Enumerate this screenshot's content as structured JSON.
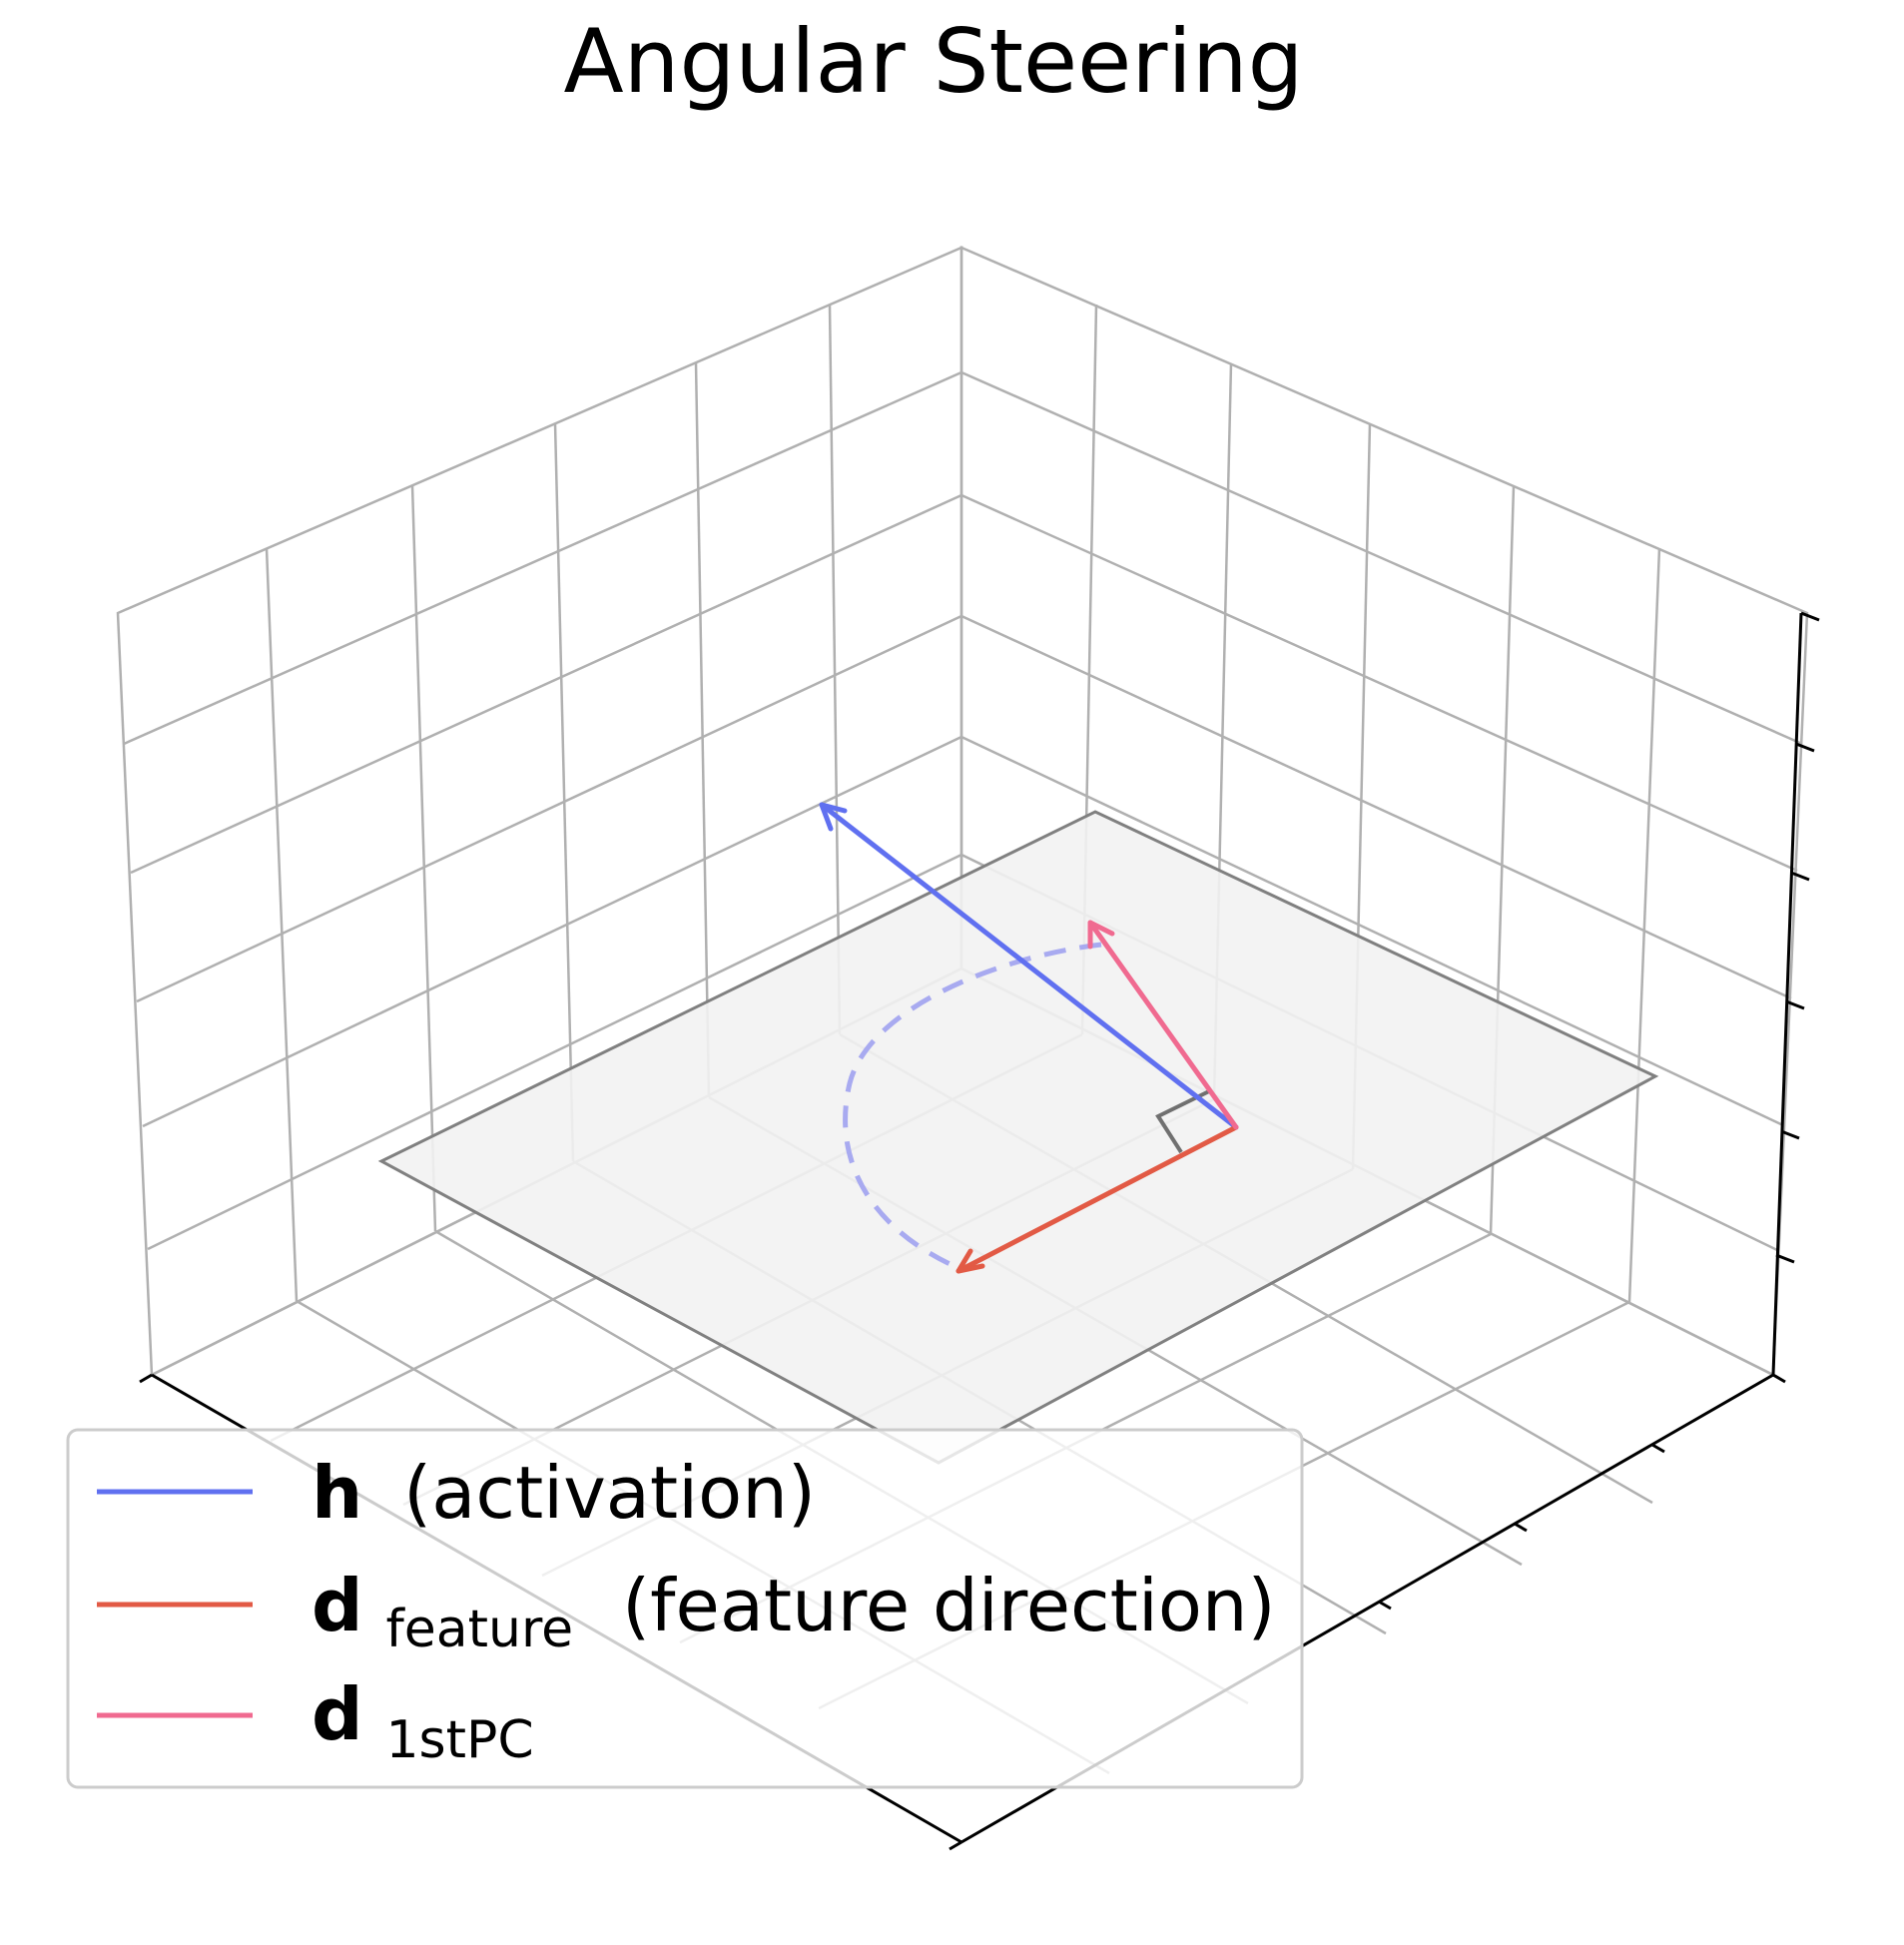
{
  "title": "Angular Steering",
  "legend": [
    {
      "symbol": "h",
      "subscript": "",
      "label": "(activation)",
      "color": "#6070f0"
    },
    {
      "symbol": "d",
      "subscript": "feature",
      "label": "(feature direction)",
      "color": "#e25a45"
    },
    {
      "symbol": "d",
      "subscript": "1stPC",
      "label": "",
      "color": "#f06a90"
    }
  ],
  "vectors": [
    {
      "name": "h",
      "color": "#6070f0",
      "arrowhead": true
    },
    {
      "name": "d_feature",
      "color": "#e25a45",
      "arrowhead": true
    },
    {
      "name": "d_1stPC",
      "color": "#f06a90",
      "arrowhead": true
    }
  ],
  "rotation_arc": {
    "color": "#a8aaf0",
    "style": "dashed"
  },
  "plane": {
    "fill": "#f2f2f2",
    "edge": "#808080"
  },
  "grid_color": "#b0b0b0",
  "axis_color": "#000000",
  "tick_labels_shown": false
}
